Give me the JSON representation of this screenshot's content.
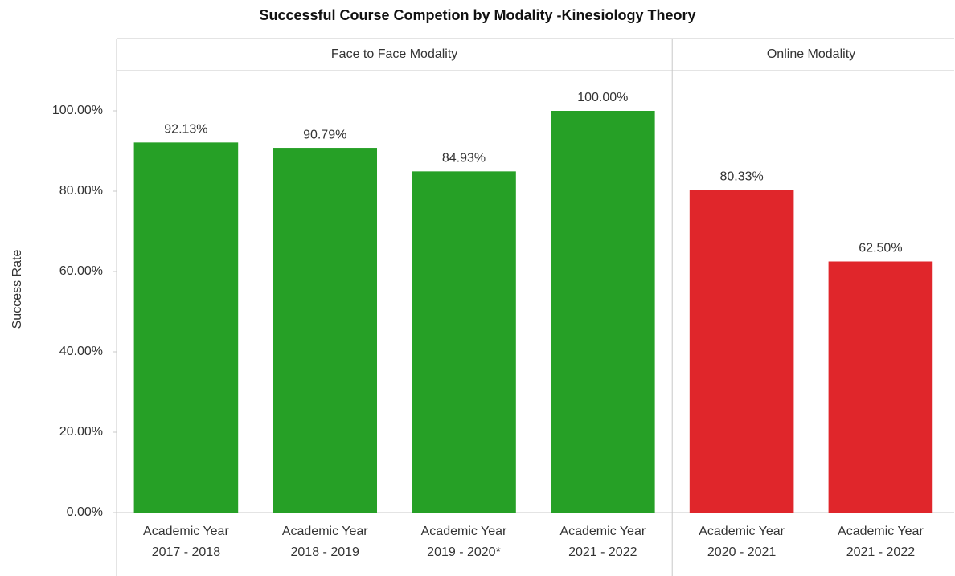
{
  "chart_data": {
    "type": "bar",
    "title": "Successful Course Competion by Modality -Kinesiology Theory",
    "y_label": "Success Rate",
    "ylim": [
      0,
      110
    ],
    "yticks": [
      {
        "value": 0,
        "label": "0.00%"
      },
      {
        "value": 20,
        "label": "20.00%"
      },
      {
        "value": 40,
        "label": "40.00%"
      },
      {
        "value": 60,
        "label": "60.00%"
      },
      {
        "value": 80,
        "label": "80.00%"
      },
      {
        "value": 100,
        "label": "100.00%"
      }
    ],
    "grid": false,
    "panels": [
      {
        "name": "Face to Face Modality",
        "color": "#26a026",
        "categories": [
          "Academic Year\n2017 - 2018",
          "Academic Year\n2018 - 2019",
          "Academic Year\n2019 - 2020*",
          "Academic Year\n2021 - 2022"
        ],
        "values": [
          92.13,
          90.79,
          84.93,
          100
        ],
        "value_labels": [
          "92.13%",
          "90.79%",
          "84.93%",
          "100.00%"
        ]
      },
      {
        "name": "Online Modality",
        "color": "#e0262b",
        "categories": [
          "Academic Year\n2020 - 2021",
          "Academic Year\n2021 - 2022"
        ],
        "values": [
          80.33,
          62.5
        ],
        "value_labels": [
          "80.33%",
          "62.50%"
        ]
      }
    ]
  }
}
